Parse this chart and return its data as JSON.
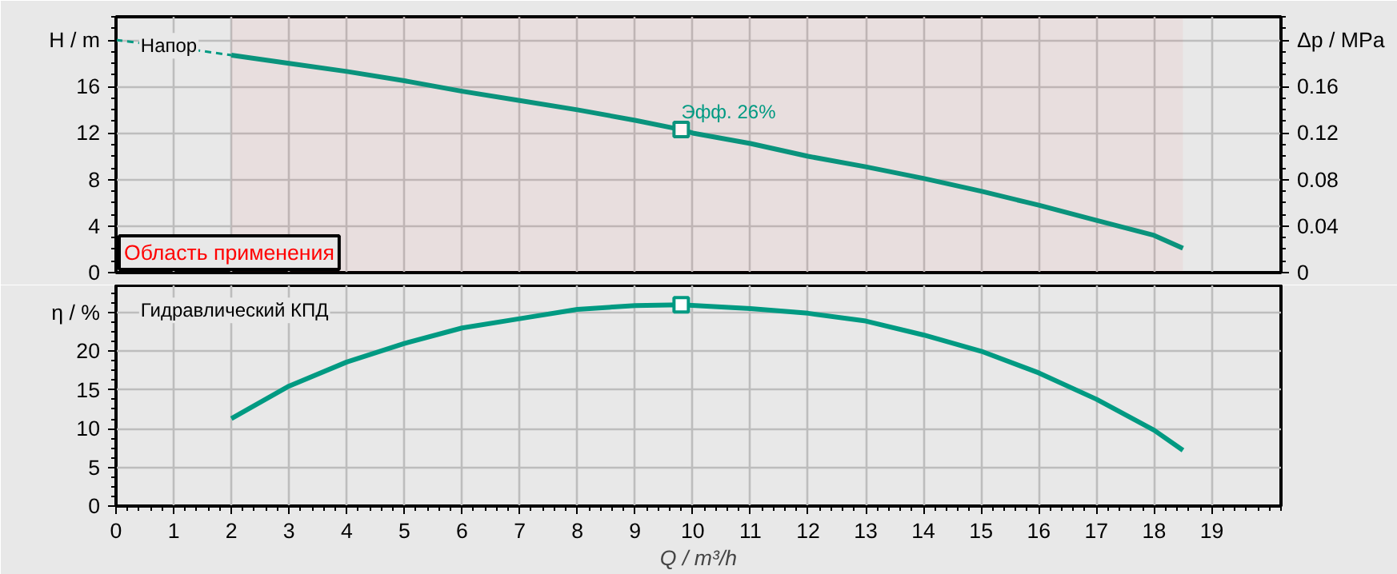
{
  "chart_data": [
    {
      "type": "line",
      "xlim": [
        0,
        20.2
      ],
      "xticks": [
        0,
        1,
        2,
        3,
        4,
        5,
        6,
        7,
        8,
        9,
        10,
        11,
        12,
        13,
        14,
        15,
        16,
        17,
        18,
        19
      ],
      "ylim": [
        0,
        22
      ],
      "yticks": [
        0,
        4,
        8,
        12,
        16,
        {
          "value": 20,
          "label": "H / m"
        }
      ],
      "y2lim": [
        0,
        0.22
      ],
      "y2ticks": [
        0,
        0.04,
        0.08,
        0.12,
        0.16,
        {
          "value": 0.2,
          "label": "Δp / MPa"
        }
      ],
      "tick_labels": "y",
      "grid": true,
      "series": [
        {
          "x": [
            0,
            1,
            2
          ],
          "values": [
            20.0,
            19.4,
            18.7
          ],
          "color": "#009a82",
          "line_style": "dashed"
        },
        {
          "x": [
            2,
            3,
            4,
            5,
            6,
            7,
            8,
            9,
            9.8,
            10,
            11,
            12,
            13,
            14,
            15,
            16,
            17,
            18,
            18.5
          ],
          "values": [
            18.7,
            18.0,
            17.3,
            16.5,
            15.6,
            14.8,
            14.0,
            13.1,
            12.3,
            12.0,
            11.1,
            10.0,
            9.1,
            8.1,
            7.0,
            5.8,
            4.5,
            3.2,
            2.1
          ],
          "color": "#009a82",
          "line_style": "solid"
        },
        {
          "type": "scatter",
          "x": [
            9.8
          ],
          "values": [
            12.3
          ],
          "color": "#009a82",
          "marker": "square"
        }
      ],
      "annotations": [
        "Напор",
        {
          "text": "Эфф.  26%",
          "x": 9.8,
          "y": 12.3
        }
      ],
      "bands": [
        {
          "axis": "x",
          "from": 2,
          "to": 18.5,
          "label": "Область применения",
          "color": "#ff0000"
        }
      ]
    },
    {
      "type": "line",
      "xlim": [
        0,
        20.2
      ],
      "xticks": [
        0,
        1,
        2,
        3,
        4,
        5,
        6,
        7,
        8,
        9,
        10,
        11,
        12,
        13,
        14,
        15,
        16,
        17,
        18,
        19
      ],
      "xlabel": "Q / m³/h",
      "ylim": [
        0,
        28.5
      ],
      "yticks": [
        0,
        5,
        10,
        15,
        20,
        {
          "value": 25,
          "label": "η / %"
        }
      ],
      "grid": true,
      "series": [
        {
          "x": [
            2,
            3,
            4,
            5,
            6,
            7,
            8,
            9,
            9.8,
            11,
            12,
            13,
            14,
            15,
            16,
            17,
            18,
            18.5
          ],
          "values": [
            11.3,
            15.5,
            18.6,
            21.0,
            23.0,
            24.2,
            25.4,
            25.9,
            26.0,
            25.5,
            24.9,
            23.9,
            22.1,
            20.0,
            17.2,
            13.8,
            9.8,
            7.2
          ],
          "color": "#009a82",
          "line_style": "solid"
        },
        {
          "type": "scatter",
          "x": [
            9.8
          ],
          "values": [
            26.0
          ],
          "color": "#009a82",
          "marker": "square"
        }
      ],
      "annotations": [
        "Гидравлический КПД"
      ]
    }
  ]
}
